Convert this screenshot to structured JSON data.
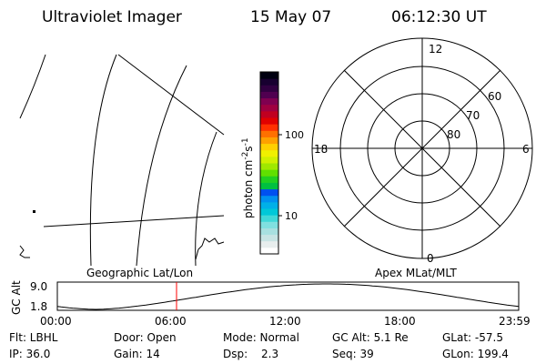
{
  "header": {
    "instrument": "Ultraviolet Imager",
    "date": "15 May 07",
    "time": "06:12:30 UT"
  },
  "colorbar": {
    "label": "photon cm",
    "label_sup1": "-2",
    "label_mid": "s",
    "label_sup2": "-1",
    "tick_high": "100",
    "tick_low": "10",
    "colors": [
      "#ffffff",
      "#e8eeee",
      "#c8e4e4",
      "#a8e0e0",
      "#80e0e0",
      "#40d8d8",
      "#00c8d8",
      "#00b0e8",
      "#0090f0",
      "#0050f0",
      "#00c040",
      "#20d020",
      "#60e000",
      "#a0e800",
      "#d0f000",
      "#f0f000",
      "#ffd000",
      "#ffa000",
      "#ff7000",
      "#ff3000",
      "#e00000",
      "#c00020",
      "#a00040",
      "#800050",
      "#500050",
      "#300040",
      "#180030",
      "#000010"
    ]
  },
  "polar": {
    "mlt_labels": {
      "top": "12",
      "left": "18",
      "right": "6",
      "bottom": "0"
    },
    "lat_labels": [
      "60",
      "70",
      "80"
    ]
  },
  "panel_labels": {
    "left": "Geographic Lat/Lon",
    "right": "Apex MLat/MLT"
  },
  "gc_plot": {
    "axis_label": "GC Alt",
    "y_top": "9.0",
    "y_bottom": "1.8",
    "x_ticks": [
      "00:00",
      "06:00",
      "12:00",
      "18:00",
      "23:59"
    ],
    "current_time_marker_hours": 6.2,
    "marker_color": "#ff0000"
  },
  "footer": {
    "row1": {
      "flt": "Flt:  LBHL",
      "door": "Door:  Open",
      "mode": "Mode:  Normal",
      "gcalt": "GC Alt:  5.1  Re",
      "glat": "GLat:  -57.5"
    },
    "row2": {
      "ip": "IP:  36.0",
      "gain": "Gain:  14",
      "dsp": "Dsp:",
      "dsp_val": "2.3",
      "seq": "Seq:  39",
      "glon": "GLon:  199.4"
    }
  }
}
